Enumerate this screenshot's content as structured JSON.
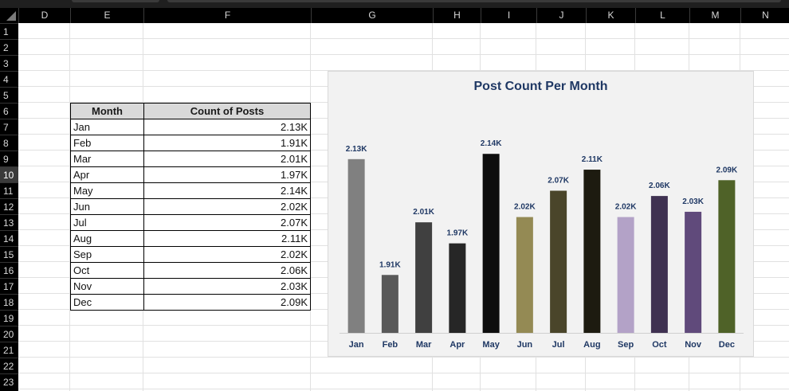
{
  "sheet": {
    "columns": [
      "D",
      "E",
      "F",
      "G",
      "H",
      "I",
      "J",
      "K",
      "L",
      "M",
      "N"
    ],
    "rows": [
      "1",
      "2",
      "3",
      "4",
      "5",
      "6",
      "7",
      "8",
      "9",
      "10",
      "11",
      "12",
      "13",
      "14",
      "15",
      "16",
      "17",
      "18",
      "19",
      "20",
      "21",
      "22",
      "23"
    ],
    "selected_row": "10"
  },
  "table": {
    "headers": [
      "Month",
      "Count of Posts"
    ],
    "rows": [
      {
        "month": "Jan",
        "count": "2.13K"
      },
      {
        "month": "Feb",
        "count": "1.91K"
      },
      {
        "month": "Mar",
        "count": "2.01K"
      },
      {
        "month": "Apr",
        "count": "1.97K"
      },
      {
        "month": "May",
        "count": "2.14K"
      },
      {
        "month": "Jun",
        "count": "2.02K"
      },
      {
        "month": "Jul",
        "count": "2.07K"
      },
      {
        "month": "Aug",
        "count": "2.11K"
      },
      {
        "month": "Sep",
        "count": "2.02K"
      },
      {
        "month": "Oct",
        "count": "2.06K"
      },
      {
        "month": "Nov",
        "count": "2.03K"
      },
      {
        "month": "Dec",
        "count": "2.09K"
      }
    ]
  },
  "chart_data": {
    "type": "bar",
    "title": "Post Count Per Month",
    "categories": [
      "Jan",
      "Feb",
      "Mar",
      "Apr",
      "May",
      "Jun",
      "Jul",
      "Aug",
      "Sep",
      "Oct",
      "Nov",
      "Dec"
    ],
    "values": [
      2130,
      1910,
      2010,
      1970,
      2140,
      2020,
      2070,
      2110,
      2020,
      2060,
      2030,
      2090
    ],
    "labels": [
      "2.13K",
      "1.91K",
      "2.01K",
      "1.97K",
      "2.14K",
      "2.02K",
      "2.07K",
      "2.11K",
      "2.02K",
      "2.06K",
      "2.03K",
      "2.09K"
    ],
    "colors": [
      "#808080",
      "#595959",
      "#404040",
      "#262626",
      "#0d0d0d",
      "#948a54",
      "#4a452a",
      "#1d1b10",
      "#b3a2c7",
      "#3f3151",
      "#604a7b",
      "#4f6228"
    ],
    "ylim": [
      1800,
      2160
    ],
    "grid": false,
    "legend": "none"
  },
  "style": {
    "title_color": "#1f3864",
    "label_color": "#1f3864"
  }
}
